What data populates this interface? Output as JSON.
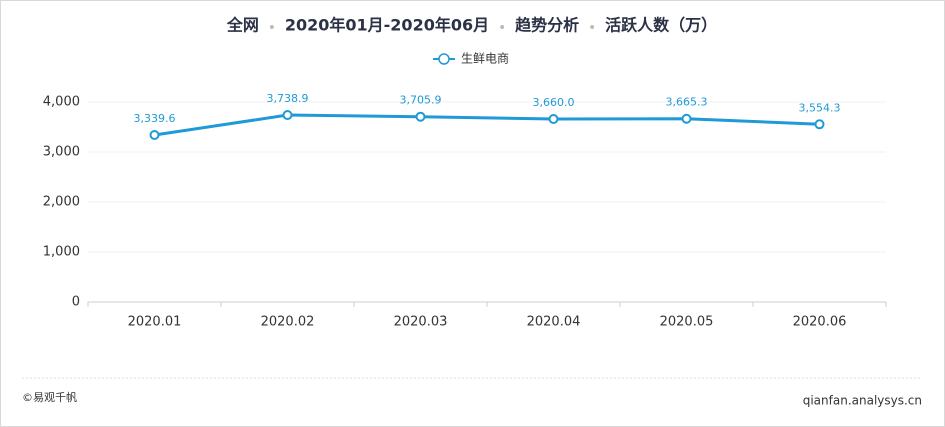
{
  "chart_data": {
    "type": "line",
    "title_parts": [
      "全网",
      "2020年01月-2020年06月",
      "趋势分析",
      "活跃人数（万）"
    ],
    "categories": [
      "2020.01",
      "2020.02",
      "2020.03",
      "2020.04",
      "2020.05",
      "2020.06"
    ],
    "series": [
      {
        "name": "生鲜电商",
        "color": "#1f9ad6",
        "values": [
          3339.6,
          3738.9,
          3705.9,
          3660.0,
          3665.3,
          3554.3
        ],
        "value_labels": [
          "3,339.6",
          "3,738.9",
          "3,705.9",
          "3,660.0",
          "3,665.3",
          "3,554.3"
        ]
      }
    ],
    "ylim": [
      0,
      4000
    ],
    "yticks": [
      0,
      {
        "value": 1000,
        "label": "1,000"
      },
      {
        "value": 2000,
        "label": "2,000"
      },
      {
        "value": 3000,
        "label": "3,000"
      },
      {
        "value": 4000,
        "label": "4,000"
      }
    ],
    "grid": true
  },
  "footer": {
    "left": "©易观千帆",
    "right": "qianfan.analysys.cn"
  }
}
